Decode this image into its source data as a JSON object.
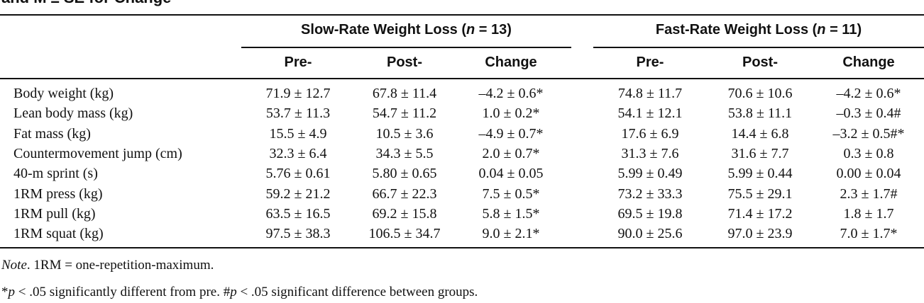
{
  "title_fragment": "and M ± SE for Change",
  "groups": [
    {
      "label": "Slow-Rate Weight Loss (",
      "n_symbol": "n",
      "n_rest": " = 13)"
    },
    {
      "label": "Fast-Rate Weight Loss (",
      "n_symbol": "n",
      "n_rest": " = 11)"
    }
  ],
  "columns": [
    "Pre-",
    "Post-",
    "Change",
    "Pre-",
    "Post-",
    "Change"
  ],
  "rows": [
    {
      "label": "Body weight (kg)",
      "values": [
        "71.9 ± 12.7",
        "67.8 ± 11.4",
        "–4.2 ± 0.6*",
        "74.8 ± 11.7",
        "70.6 ± 10.6",
        "–4.2 ± 0.6*"
      ]
    },
    {
      "label": "Lean body mass (kg)",
      "values": [
        "53.7 ± 11.3",
        "54.7 ± 11.2",
        "1.0 ± 0.2*",
        "54.1 ± 12.1",
        "53.8 ± 11.1",
        "–0.3 ± 0.4#"
      ]
    },
    {
      "label": "Fat mass (kg)",
      "values": [
        "15.5 ± 4.9",
        "10.5 ± 3.6",
        "–4.9 ± 0.7*",
        "17.6 ± 6.9",
        "14.4 ± 6.8",
        "–3.2 ± 0.5#*"
      ]
    },
    {
      "label": "Countermovement jump (cm)",
      "values": [
        "32.3 ± 6.4",
        "34.3 ± 5.5",
        "2.0 ± 0.7*",
        "31.3 ± 7.6",
        "31.6 ± 7.7",
        "0.3 ± 0.8"
      ]
    },
    {
      "label": "40-m sprint (s)",
      "values": [
        "5.76 ± 0.61",
        "5.80 ± 0.65",
        "0.04 ± 0.05",
        "5.99 ± 0.49",
        "5.99 ± 0.44",
        "0.00 ± 0.04"
      ]
    },
    {
      "label": "1RM press (kg)",
      "values": [
        "59.2 ± 21.2",
        "66.7 ± 22.3",
        "7.5 ± 0.5*",
        "73.2 ± 33.3",
        "75.5 ± 29.1",
        "2.3 ± 1.7#"
      ]
    },
    {
      "label": "1RM pull (kg)",
      "values": [
        "63.5 ± 16.5",
        "69.2 ± 15.8",
        "5.8 ± 1.5*",
        "69.5 ± 19.8",
        "71.4 ± 17.2",
        "1.8 ± 1.7"
      ]
    },
    {
      "label": "1RM squat (kg)",
      "values": [
        "97.5 ± 38.3",
        "106.5 ± 34.7",
        "9.0 ± 2.1*",
        "90.0 ± 25.6",
        "97.0 ± 23.9",
        "7.0 ± 1.7*"
      ]
    }
  ],
  "notes": {
    "note_label": "Note",
    "note_text": ". 1RM = one-repetition-maximum.",
    "sig_p1": "p",
    "sig_text1": " < .05 significantly different from pre. #",
    "sig_p2": "p",
    "sig_text2": " < .05 significant difference between groups.",
    "sig_star": "*"
  }
}
